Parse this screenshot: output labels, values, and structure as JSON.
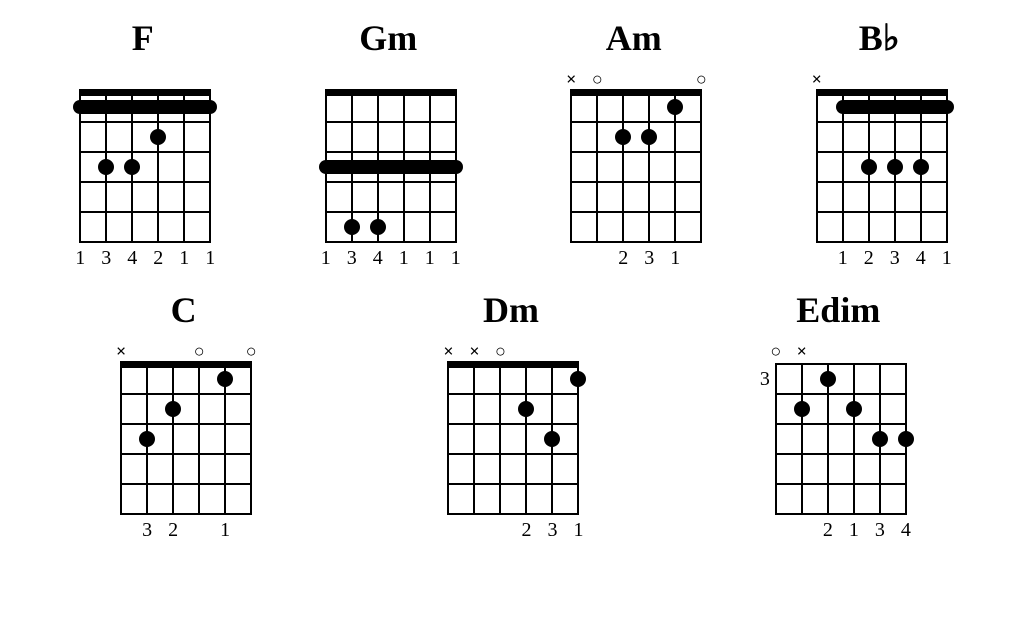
{
  "layout": {
    "string_spacing": 26,
    "fret_spacing": 30,
    "num_strings": 6,
    "num_frets": 5,
    "dot_diameter": 16,
    "barre_height": 14,
    "colors": {
      "fg": "#000000",
      "bg": "#ffffff"
    },
    "name_fontsize": 36,
    "finger_fontsize": 20
  },
  "rows": [
    {
      "chords": [
        {
          "name": "F",
          "start_fret": null,
          "show_nut": true,
          "markers": [
            "",
            "",
            "",
            "",
            "",
            ""
          ],
          "barres": [
            {
              "fret": 1,
              "from_string": 1,
              "to_string": 6
            }
          ],
          "dots": [
            {
              "string": 3,
              "fret": 2
            },
            {
              "string": 4,
              "fret": 3
            },
            {
              "string": 5,
              "fret": 3
            }
          ],
          "fingers": [
            "1",
            "3",
            "4",
            "2",
            "1",
            "1"
          ]
        },
        {
          "name": "Gm",
          "start_fret": null,
          "show_nut": true,
          "markers": [
            "",
            "",
            "",
            "",
            "",
            ""
          ],
          "barres": [
            {
              "fret": 3,
              "from_string": 1,
              "to_string": 6
            }
          ],
          "dots": [
            {
              "string": 4,
              "fret": 5
            },
            {
              "string": 5,
              "fret": 5
            }
          ],
          "fingers": [
            "1",
            "3",
            "4",
            "1",
            "1",
            "1"
          ]
        },
        {
          "name": "Am",
          "start_fret": null,
          "show_nut": true,
          "markers": [
            "×",
            "○",
            "",
            "",
            "",
            "○"
          ],
          "barres": [],
          "dots": [
            {
              "string": 2,
              "fret": 1
            },
            {
              "string": 3,
              "fret": 2
            },
            {
              "string": 4,
              "fret": 2
            }
          ],
          "fingers": [
            "",
            "",
            "2",
            "3",
            "1",
            ""
          ]
        },
        {
          "name": "B♭",
          "start_fret": null,
          "show_nut": true,
          "markers": [
            "×",
            "",
            "",
            "",
            "",
            ""
          ],
          "barres": [
            {
              "fret": 1,
              "from_string": 1,
              "to_string": 5
            }
          ],
          "dots": [
            {
              "string": 2,
              "fret": 3
            },
            {
              "string": 3,
              "fret": 3
            },
            {
              "string": 4,
              "fret": 3
            }
          ],
          "fingers": [
            "",
            "1",
            "2",
            "3",
            "4",
            "1"
          ]
        }
      ]
    },
    {
      "chords": [
        {
          "name": "C",
          "start_fret": null,
          "show_nut": true,
          "markers": [
            "×",
            "",
            "",
            "○",
            "",
            "○"
          ],
          "barres": [],
          "dots": [
            {
              "string": 2,
              "fret": 1
            },
            {
              "string": 4,
              "fret": 2
            },
            {
              "string": 5,
              "fret": 3
            }
          ],
          "fingers": [
            "",
            "3",
            "2",
            "",
            "1",
            ""
          ]
        },
        {
          "name": "Dm",
          "start_fret": null,
          "show_nut": true,
          "markers": [
            "×",
            "×",
            "○",
            "",
            "",
            ""
          ],
          "barres": [],
          "dots": [
            {
              "string": 1,
              "fret": 1
            },
            {
              "string": 3,
              "fret": 2
            },
            {
              "string": 2,
              "fret": 3
            }
          ],
          "fingers": [
            "",
            "",
            "",
            "2",
            "3",
            "1"
          ]
        },
        {
          "name": "Edim",
          "start_fret": "3",
          "show_nut": false,
          "markers": [
            "○",
            "×",
            "",
            "",
            "",
            ""
          ],
          "barres": [],
          "dots": [
            {
              "string": 4,
              "fret": 1
            },
            {
              "string": 5,
              "fret": 2
            },
            {
              "string": 3,
              "fret": 2
            },
            {
              "string": 2,
              "fret": 3
            },
            {
              "string": 1,
              "fret": 3
            }
          ],
          "fingers": [
            "",
            "",
            "2",
            "1",
            "3",
            "4"
          ]
        }
      ]
    }
  ]
}
